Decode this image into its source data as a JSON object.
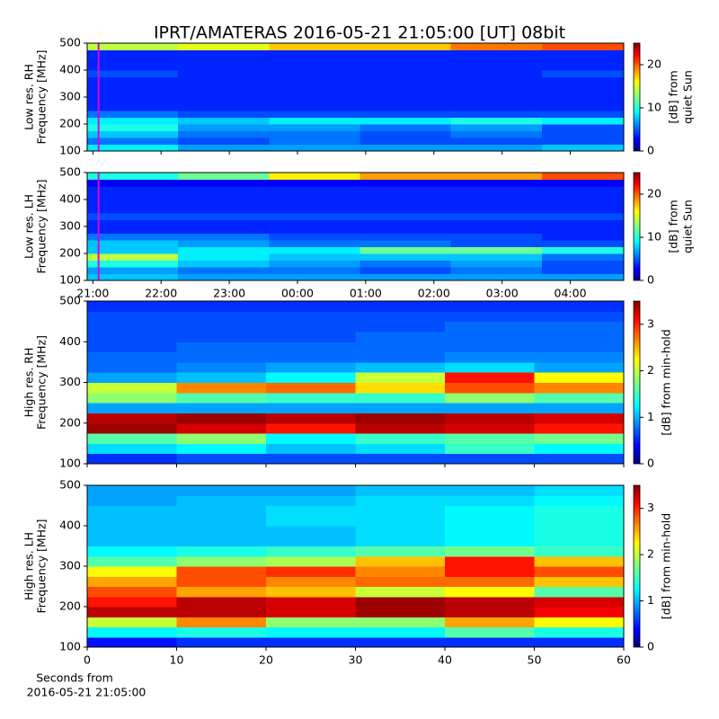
{
  "chart_data": [
    {
      "type": "heatmap",
      "title": "IPRT/AMATERAS 2016-05-21 21:05:00 [UT]   08bit",
      "ylabel": [
        "Low res. RH",
        "Frequency [MHz]"
      ],
      "clabel": [
        "[dB] from",
        "quiet Sun"
      ],
      "colormap": "jet",
      "clim": [
        0,
        25
      ],
      "cticks": [
        0,
        10,
        20
      ],
      "xlim": [
        "20:55",
        "04:47"
      ],
      "xticks": [
        "21:00",
        "22:00",
        "23:00",
        "00:00",
        "01:00",
        "02:00",
        "03:00",
        "04:00"
      ],
      "show_xticklabels": false,
      "ylim": [
        100,
        500
      ],
      "yticks": [
        100,
        200,
        300,
        400,
        500
      ],
      "marker": {
        "x": "21:05",
        "color": "#e000e0"
      },
      "xbins": [
        "20:55",
        "22:15",
        "23:35",
        "00:55",
        "02:15",
        "03:35",
        "04:47"
      ],
      "ybins": [
        100,
        125,
        150,
        175,
        200,
        225,
        250,
        275,
        300,
        325,
        350,
        375,
        400,
        425,
        450,
        475,
        500
      ],
      "z": [
        [
          9,
          7,
          7,
          7,
          7,
          8
        ],
        [
          6,
          5,
          6,
          5,
          5,
          5
        ],
        [
          8,
          6,
          6,
          5,
          6,
          5
        ],
        [
          10,
          7,
          7,
          6,
          7,
          5
        ],
        [
          9,
          8,
          9,
          9,
          10,
          9
        ],
        [
          6,
          5,
          5,
          5,
          5,
          5
        ],
        [
          4,
          4,
          4,
          4,
          4,
          4
        ],
        [
          4,
          4,
          4,
          4,
          4,
          4
        ],
        [
          4,
          4,
          4,
          4,
          4,
          4
        ],
        [
          4,
          4,
          4,
          4,
          4,
          4
        ],
        [
          4,
          4,
          4,
          4,
          4,
          4
        ],
        [
          5,
          4,
          4,
          4,
          4,
          5
        ],
        [
          4,
          4,
          4,
          4,
          4,
          4
        ],
        [
          4,
          4,
          4,
          4,
          4,
          4
        ],
        [
          4,
          4,
          4,
          4,
          4,
          4
        ],
        [
          14,
          15,
          17,
          17,
          19,
          20
        ]
      ]
    },
    {
      "type": "heatmap",
      "ylabel": [
        "Low res. LH",
        "Frequency [MHz]"
      ],
      "clabel": [
        "[dB] from",
        "quiet Sun"
      ],
      "colormap": "jet",
      "clim": [
        0,
        25
      ],
      "cticks": [
        0,
        10,
        20
      ],
      "xlim": [
        "20:55",
        "04:47"
      ],
      "xticks": [
        "21:00",
        "22:00",
        "23:00",
        "00:00",
        "01:00",
        "02:00",
        "03:00",
        "04:00"
      ],
      "show_xticklabels": true,
      "ylim": [
        100,
        500
      ],
      "yticks": [
        100,
        200,
        300,
        400,
        500
      ],
      "marker": {
        "x": "21:05",
        "color": "#e000e0"
      },
      "xbins": [
        "20:55",
        "22:15",
        "23:35",
        "00:55",
        "02:15",
        "03:35",
        "04:47"
      ],
      "ybins": [
        100,
        125,
        150,
        175,
        200,
        225,
        250,
        275,
        300,
        325,
        350,
        375,
        400,
        425,
        450,
        475,
        500
      ],
      "z": [
        [
          8,
          7,
          7,
          7,
          7,
          7
        ],
        [
          7,
          6,
          6,
          5,
          6,
          5
        ],
        [
          10,
          8,
          7,
          6,
          7,
          5
        ],
        [
          14,
          9,
          8,
          8,
          8,
          6
        ],
        [
          8,
          9,
          9,
          12,
          12,
          10
        ],
        [
          8,
          7,
          6,
          6,
          5,
          5
        ],
        [
          6,
          6,
          5,
          5,
          5,
          4
        ],
        [
          4,
          4,
          4,
          4,
          4,
          4
        ],
        [
          4,
          4,
          4,
          4,
          4,
          4
        ],
        [
          5,
          5,
          5,
          5,
          5,
          5
        ],
        [
          4,
          4,
          4,
          4,
          4,
          4
        ],
        [
          4,
          4,
          4,
          4,
          4,
          4
        ],
        [
          4,
          4,
          4,
          4,
          4,
          4
        ],
        [
          4,
          4,
          4,
          4,
          4,
          4
        ],
        [
          3,
          3,
          3,
          3,
          3,
          3
        ],
        [
          10,
          12,
          16,
          18,
          18,
          20
        ]
      ]
    },
    {
      "type": "heatmap",
      "ylabel": [
        "High res. RH",
        "Frequency [MHz]"
      ],
      "clabel": [
        "[dB] from min-hold"
      ],
      "colormap": "jet",
      "clim": [
        0,
        3.5
      ],
      "cticks": [
        0,
        1,
        2,
        3
      ],
      "xlim": [
        0,
        60
      ],
      "xticks": [
        0,
        10,
        20,
        30,
        40,
        50,
        60
      ],
      "show_xticklabels": false,
      "ylim": [
        100,
        500
      ],
      "yticks": [
        100,
        200,
        300,
        400,
        500
      ],
      "xbins": [
        0,
        10,
        20,
        30,
        40,
        50,
        60
      ],
      "ybins": [
        100,
        125,
        150,
        175,
        200,
        225,
        250,
        275,
        300,
        325,
        350,
        375,
        400,
        425,
        450,
        475,
        500
      ],
      "z": [
        [
          0.6,
          0.7,
          0.7,
          0.7,
          0.7,
          0.7
        ],
        [
          1.2,
          1.3,
          1.1,
          1.2,
          1.5,
          1.3
        ],
        [
          1.6,
          1.8,
          1.3,
          1.5,
          1.6,
          1.7
        ],
        [
          3.4,
          3.2,
          3.0,
          3.3,
          3.2,
          3.0
        ],
        [
          3.3,
          3.4,
          3.3,
          3.4,
          3.3,
          3.2
        ],
        [
          1.0,
          1.0,
          1.0,
          1.0,
          1.0,
          1.0
        ],
        [
          1.8,
          1.6,
          1.5,
          1.5,
          1.8,
          1.6
        ],
        [
          2.0,
          2.6,
          2.7,
          2.3,
          2.8,
          2.6
        ],
        [
          1.0,
          1.1,
          1.3,
          2.0,
          3.0,
          2.2
        ],
        [
          0.8,
          0.9,
          1.0,
          1.1,
          1.2,
          1.0
        ],
        [
          0.8,
          0.8,
          0.8,
          0.8,
          0.9,
          0.9
        ],
        [
          0.7,
          0.8,
          0.8,
          0.8,
          0.8,
          0.8
        ],
        [
          0.7,
          0.7,
          0.7,
          0.8,
          0.8,
          0.8
        ],
        [
          0.7,
          0.7,
          0.7,
          0.7,
          0.8,
          0.8
        ],
        [
          0.7,
          0.7,
          0.7,
          0.7,
          0.7,
          0.7
        ],
        [
          0.6,
          0.6,
          0.6,
          0.6,
          0.6,
          0.6
        ]
      ]
    },
    {
      "type": "heatmap",
      "ylabel": [
        "High res. LH",
        "Frequency [MHz]"
      ],
      "clabel": [
        "[dB] from min-hold"
      ],
      "colormap": "jet",
      "clim": [
        0,
        3.5
      ],
      "cticks": [
        0,
        1,
        2,
        3
      ],
      "xlim": [
        0,
        60
      ],
      "xticks": [
        0,
        10,
        20,
        30,
        40,
        50,
        60
      ],
      "show_xticklabels": true,
      "xlabel": [
        "Seconds from",
        "2016-05-21 21:05:00"
      ],
      "ylim": [
        100,
        500
      ],
      "yticks": [
        100,
        200,
        300,
        400,
        500
      ],
      "xbins": [
        0,
        10,
        20,
        30,
        40,
        50,
        60
      ],
      "ybins": [
        100,
        125,
        150,
        175,
        200,
        225,
        250,
        275,
        300,
        325,
        350,
        375,
        400,
        425,
        450,
        475,
        500
      ],
      "z": [
        [
          0.5,
          0.6,
          0.6,
          0.6,
          0.6,
          0.6
        ],
        [
          1.3,
          1.4,
          1.3,
          1.3,
          1.6,
          1.4
        ],
        [
          2.0,
          2.6,
          1.8,
          1.8,
          2.5,
          2.2
        ],
        [
          3.3,
          3.3,
          3.2,
          3.4,
          3.3,
          3.1
        ],
        [
          3.0,
          3.3,
          3.2,
          3.4,
          3.3,
          3.2
        ],
        [
          2.8,
          2.5,
          2.4,
          2.0,
          2.2,
          1.6
        ],
        [
          2.5,
          2.8,
          2.6,
          2.7,
          2.7,
          2.4
        ],
        [
          2.2,
          2.8,
          2.9,
          2.6,
          3.0,
          2.8
        ],
        [
          1.6,
          1.8,
          1.9,
          2.4,
          3.0,
          2.4
        ],
        [
          1.3,
          1.4,
          1.5,
          1.6,
          1.7,
          1.5
        ],
        [
          1.1,
          1.1,
          1.1,
          1.2,
          1.3,
          1.4
        ],
        [
          1.1,
          1.1,
          1.1,
          1.2,
          1.3,
          1.4
        ],
        [
          1.1,
          1.1,
          1.2,
          1.2,
          1.3,
          1.4
        ],
        [
          1.1,
          1.1,
          1.2,
          1.2,
          1.3,
          1.4
        ],
        [
          1.0,
          1.1,
          1.1,
          1.2,
          1.2,
          1.3
        ],
        [
          1.0,
          1.0,
          1.0,
          1.1,
          1.1,
          1.2
        ]
      ]
    }
  ]
}
